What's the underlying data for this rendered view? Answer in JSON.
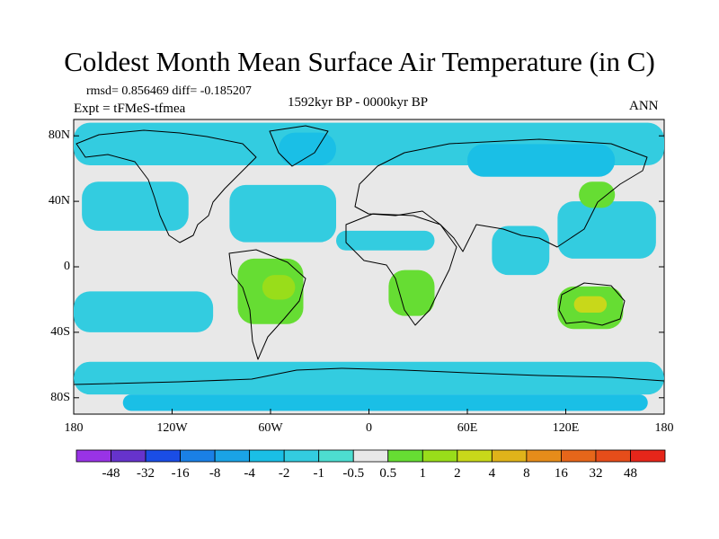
{
  "title": "Coldest Month Mean Surface Air Temperature (in C)",
  "stats_line": "rmsd= 0.856469 diff= -0.185207",
  "experiment_line": "Expt = tFMeS-tfmea",
  "period": "1592kyr BP - 0000kyr BP",
  "season": "ANN",
  "map": {
    "lon_range": [
      -180,
      180
    ],
    "lat_range": [
      -90,
      90
    ],
    "lat_ticks": [
      {
        "value": 80,
        "label": "80N"
      },
      {
        "value": 40,
        "label": "40N"
      },
      {
        "value": 0,
        "label": "0"
      },
      {
        "value": -40,
        "label": "40S"
      },
      {
        "value": -80,
        "label": "80S"
      }
    ],
    "lon_ticks": [
      {
        "value": -180,
        "label": "180"
      },
      {
        "value": -120,
        "label": "120W"
      },
      {
        "value": -60,
        "label": "60W"
      },
      {
        "value": 0,
        "label": "0"
      },
      {
        "value": 60,
        "label": "60E"
      },
      {
        "value": 120,
        "label": "120E"
      },
      {
        "value": 180,
        "label": "180"
      }
    ],
    "background_color": "#e8e8e8",
    "coastline_color": "#000000"
  },
  "colorbar": {
    "labels": [
      "-48",
      "-32",
      "-16",
      "-8",
      "-4",
      "-2",
      "-1",
      "-0.5",
      "0.5",
      "1",
      "2",
      "4",
      "8",
      "16",
      "32",
      "48"
    ],
    "colors": [
      "#9933e6",
      "#6633cc",
      "#1a4de6",
      "#1a80e6",
      "#1aa3e6",
      "#1abfe6",
      "#33cce0",
      "#4dddd0",
      "#e8e8e8",
      "#66dd33",
      "#99dd1a",
      "#c8d81a",
      "#e0b31a",
      "#e68c1a",
      "#e6661a",
      "#e64d1a",
      "#e6261a"
    ]
  },
  "regions": [
    {
      "name": "arctic-cooling",
      "level": "-1",
      "color": "#33cce0",
      "lon": [
        -180,
        180
      ],
      "lat": [
        62,
        88
      ]
    },
    {
      "name": "north-pacific-cooling",
      "level": "-1",
      "color": "#33cce0",
      "lon": [
        -175,
        -110
      ],
      "lat": [
        22,
        52
      ]
    },
    {
      "name": "north-atlantic-cooling",
      "level": "-1",
      "color": "#33cce0",
      "lon": [
        -85,
        -20
      ],
      "lat": [
        15,
        50
      ]
    },
    {
      "name": "north-africa-arabia-cooling",
      "level": "-1",
      "color": "#33cce0",
      "lon": [
        -20,
        40
      ],
      "lat": [
        10,
        22
      ]
    },
    {
      "name": "north-indian-cooling",
      "level": "-1",
      "color": "#33cce0",
      "lon": [
        75,
        110
      ],
      "lat": [
        -5,
        25
      ]
    },
    {
      "name": "west-pacific-cooling",
      "level": "-1",
      "color": "#33cce0",
      "lon": [
        115,
        175
      ],
      "lat": [
        5,
        40
      ]
    },
    {
      "name": "south-pacific-cooling",
      "level": "-1",
      "color": "#33cce0",
      "lon": [
        -180,
        -95
      ],
      "lat": [
        -40,
        -15
      ]
    },
    {
      "name": "southern-ocean-cooling",
      "level": "-1",
      "color": "#33cce0",
      "lon": [
        -180,
        180
      ],
      "lat": [
        -78,
        -58
      ]
    },
    {
      "name": "greenland-cooling",
      "level": "-2",
      "color": "#1abfe6",
      "lon": [
        -55,
        -20
      ],
      "lat": [
        62,
        82
      ]
    },
    {
      "name": "siberia-cooling",
      "level": "-2",
      "color": "#1abfe6",
      "lon": [
        60,
        150
      ],
      "lat": [
        55,
        75
      ]
    },
    {
      "name": "antarctic-cooling",
      "level": "-2",
      "color": "#1abfe6",
      "lon": [
        -150,
        170
      ],
      "lat": [
        -88,
        -78
      ]
    },
    {
      "name": "south-america-warming",
      "level": "1",
      "color": "#66dd33",
      "lon": [
        -80,
        -40
      ],
      "lat": [
        -35,
        5
      ]
    },
    {
      "name": "southern-africa-warming",
      "level": "1",
      "color": "#66dd33",
      "lon": [
        12,
        40
      ],
      "lat": [
        -30,
        -2
      ]
    },
    {
      "name": "australia-warming",
      "level": "1",
      "color": "#66dd33",
      "lon": [
        115,
        155
      ],
      "lat": [
        -38,
        -12
      ]
    },
    {
      "name": "east-asia-warming",
      "level": "1",
      "color": "#66dd33",
      "lon": [
        128,
        150
      ],
      "lat": [
        36,
        52
      ]
    },
    {
      "name": "brazil-warming",
      "level": "2",
      "color": "#99dd1a",
      "lon": [
        -65,
        -45
      ],
      "lat": [
        -20,
        -5
      ]
    },
    {
      "name": "central-australia-warming",
      "level": "4",
      "color": "#c8d81a",
      "lon": [
        125,
        145
      ],
      "lat": [
        -28,
        -18
      ]
    }
  ]
}
